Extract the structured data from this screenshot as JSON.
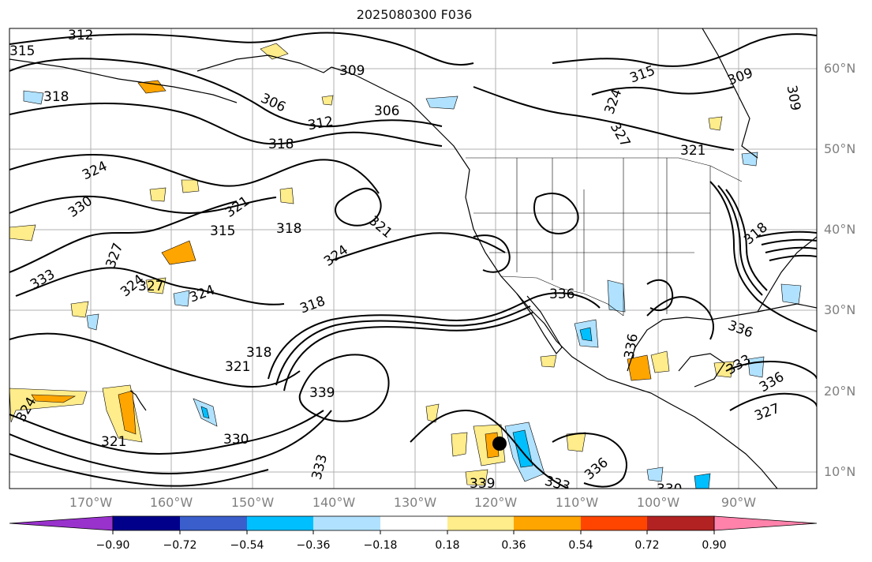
{
  "title": "2025080300 F036",
  "map": {
    "lon_ticks": [
      "170°W",
      "160°W",
      "150°W",
      "140°W",
      "130°W",
      "120°W",
      "110°W",
      "100°W",
      "90°W"
    ],
    "lat_ticks": [
      "60°N",
      "50°N",
      "40°N",
      "30°N",
      "20°N",
      "10°N"
    ],
    "contour_labels": [
      "315",
      "312",
      "318",
      "309",
      "306",
      "312",
      "318",
      "306",
      "324",
      "321",
      "324",
      "330",
      "321",
      "315",
      "318",
      "321",
      "327",
      "324",
      "333",
      "324",
      "327",
      "318",
      "318",
      "339",
      "330",
      "321",
      "324",
      "333",
      "339",
      "333",
      "336",
      "315",
      "324",
      "327",
      "321",
      "309",
      "309",
      "336",
      "333",
      "336",
      "327",
      "318",
      "336",
      "336",
      "330"
    ],
    "marker": {
      "name": "storm-position-dot",
      "color": "#000000",
      "lon": -119,
      "lat": 13.5
    }
  },
  "colorbar": {
    "ticks": [
      "−0.90",
      "−0.72",
      "−0.54",
      "−0.36",
      "−0.18",
      "0.18",
      "0.36",
      "0.54",
      "0.72",
      "0.90"
    ],
    "colors": [
      "#9932cc",
      "#00008b",
      "#3a5fcd",
      "#00bfff",
      "#b0e2ff",
      "#ffffff",
      "#ffec8b",
      "#ffa500",
      "#ff4500",
      "#b22222",
      "#ff82ab"
    ]
  }
}
